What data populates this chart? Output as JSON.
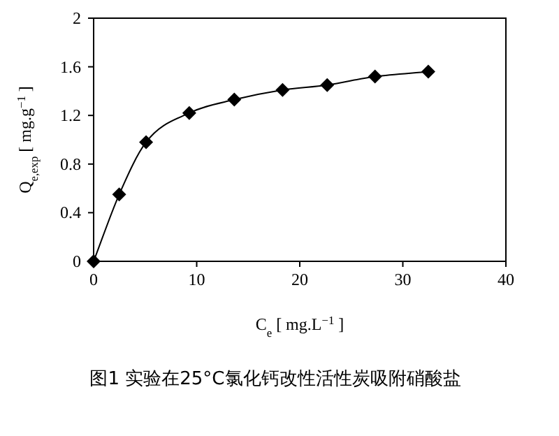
{
  "chart_data": {
    "type": "line",
    "title": "图1  实验在25°C氯化钙改性活性炭吸附硝酸盐",
    "xlabel": "C$_{e}$ [ mg.L$^{−1}$ ]",
    "ylabel": "Q$_{e,exp}$ [ mg.g$^{−1}$ ]",
    "series": [
      {
        "color": "#000000",
        "x": [
          0,
          2.48,
          5.09,
          9.28,
          13.65,
          18.33,
          22.66,
          27.3,
          32.47
        ],
        "values": [
          0,
          0.55,
          0.98,
          1.22,
          1.33,
          1.41,
          1.45,
          1.52,
          1.56
        ]
      }
    ],
    "xlim": [
      0,
      40
    ],
    "ylim": [
      0,
      2
    ],
    "xticks": [
      0,
      10,
      20,
      30,
      40
    ],
    "yticks": [
      0,
      0.4,
      0.8,
      1.2,
      1.6,
      2
    ],
    "marker": "diamond",
    "line_style": "solid"
  }
}
